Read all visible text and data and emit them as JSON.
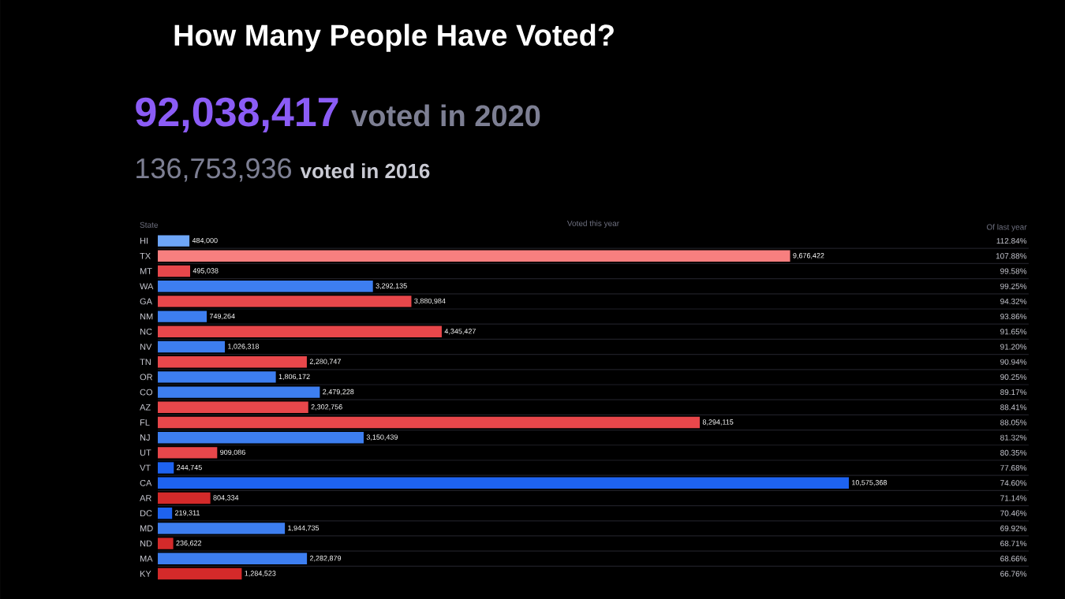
{
  "chart_data": {
    "type": "bar",
    "orientation": "horizontal",
    "title": "How Many People Have Voted?",
    "xlabel": "Voted this year",
    "ylabel": "State",
    "grid": "y",
    "categories": [
      "HI",
      "TX",
      "MT",
      "WA",
      "GA",
      "NM",
      "NC",
      "NV",
      "TN",
      "OR",
      "CO",
      "AZ",
      "FL",
      "NJ",
      "UT",
      "VT",
      "CA",
      "AR",
      "DC",
      "MD",
      "ND",
      "MA",
      "KY"
    ],
    "values": [
      484000,
      9676422,
      495038,
      3292135,
      3880984,
      749264,
      4345427,
      1026318,
      2280747,
      1806172,
      2479228,
      2302756,
      8294115,
      3150439,
      909086,
      244745,
      10575368,
      804334,
      219311,
      1944735,
      236622,
      2282879,
      1284523
    ],
    "value_labels": [
      "484,000",
      "9,676,422",
      "495,038",
      "3,292,135",
      "3,880,984",
      "749,264",
      "4,345,427",
      "1,026,318",
      "2,280,747",
      "1,806,172",
      "2,479,228",
      "2,302,756",
      "8,294,115",
      "3,150,439",
      "909,086",
      "244,745",
      "10,575,368",
      "804,334",
      "219,311",
      "1,944,735",
      "236,622",
      "2,282,879",
      "1,284,523"
    ],
    "colors": [
      "#6ea6f7",
      "#f77f7f",
      "#e8474b",
      "#3d7ef0",
      "#e8474b",
      "#3d7ef0",
      "#e8474b",
      "#3d7ef0",
      "#e8474b",
      "#3d7ef0",
      "#3d7ef0",
      "#e8474b",
      "#e8474b",
      "#3d7ef0",
      "#e8474b",
      "#1e63f0",
      "#1e63f0",
      "#d42a2a",
      "#1e63f0",
      "#3d7ef0",
      "#d42a2a",
      "#3d7ef0",
      "#d42a2a"
    ],
    "annotations": [
      "92,038,417",
      "voted in 2020",
      "136,753,936",
      "voted in 2016",
      "Of last year",
      "112.84%",
      "107.88%",
      "99.58%",
      "99.25%",
      "94.32%",
      "93.86%",
      "91.65%",
      "91.20%",
      "90.94%",
      "90.25%",
      "89.17%",
      "88.41%",
      "88.05%",
      "81.32%",
      "80.35%",
      "77.68%",
      "74.60%",
      "71.14%",
      "70.46%",
      "69.92%",
      "68.71%",
      "68.66%",
      "66.76%"
    ]
  }
}
